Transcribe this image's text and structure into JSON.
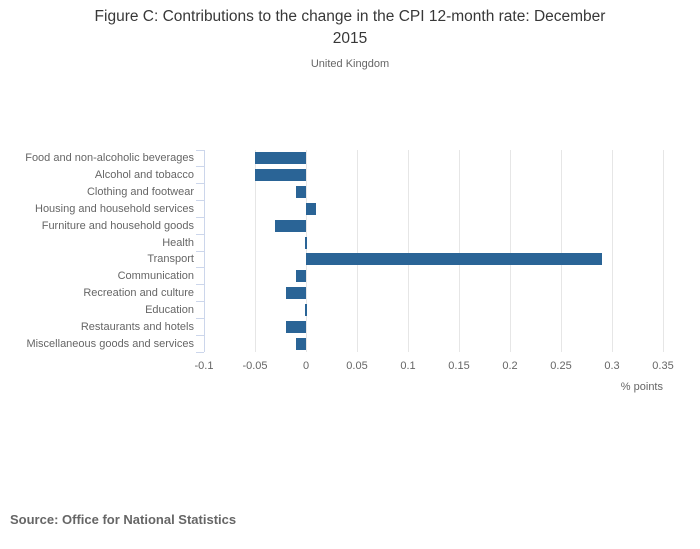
{
  "source": "Source: Office for National Statistics",
  "chart_data": {
    "type": "bar",
    "orientation": "horizontal",
    "title": "Figure C: Contributions to the change in the CPI 12-month rate: December 2015",
    "title_lines": [
      "Figure C: Contributions to the change in the CPI 12-month rate: December",
      "2015"
    ],
    "subtitle": "United Kingdom",
    "categories": [
      "Food and non-alcoholic beverages",
      "Alcohol and tobacco",
      "Clothing and footwear",
      "Housing and household services",
      "Furniture and household goods",
      "Health",
      "Transport",
      "Communication",
      "Recreation and culture",
      "Education",
      "Restaurants and hotels",
      "Miscellaneous goods and services"
    ],
    "values": [
      -0.05,
      -0.05,
      -0.01,
      0.01,
      -0.03,
      0.0,
      0.29,
      -0.01,
      -0.02,
      0.0,
      -0.02,
      -0.01
    ],
    "xlabel": "% points",
    "xlim": [
      -0.1,
      0.35
    ],
    "xticks": [
      -0.1,
      -0.05,
      0,
      0.05,
      0.1,
      0.15,
      0.2,
      0.25,
      0.3,
      0.35
    ],
    "xtick_labels": [
      "-0.1",
      "-0.05",
      "0",
      "0.05",
      "0.1",
      "0.15",
      "0.2",
      "0.25",
      "0.3",
      "0.35"
    ],
    "grid": true,
    "legend": false,
    "colors": {
      "bar": "#2a6496",
      "grid": "#e6e6e6",
      "axis": "#ccd6eb",
      "title_text": "#383838",
      "label_text": "#666666"
    }
  }
}
